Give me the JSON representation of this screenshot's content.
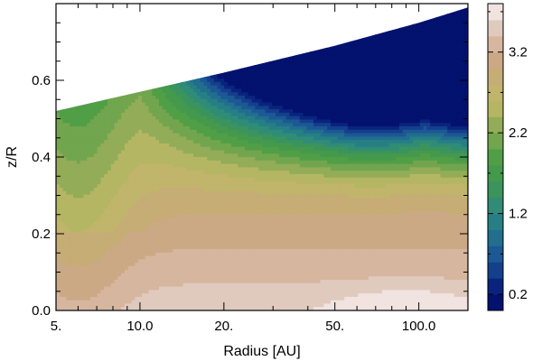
{
  "chart_data": {
    "type": "contour",
    "xlabel": "Radius [AU]",
    "ylabel": "z/R",
    "x_scale": "log",
    "xlim": [
      5,
      150
    ],
    "ylim": [
      0,
      0.8
    ],
    "x_ticks": [
      {
        "value": 5,
        "label": "5."
      },
      {
        "value": 10,
        "label": "10.0"
      },
      {
        "value": 20,
        "label": "20."
      },
      {
        "value": 50,
        "label": "50."
      },
      {
        "value": 100,
        "label": "100.0"
      }
    ],
    "y_ticks": [
      {
        "value": 0.0,
        "label": "0.0"
      },
      {
        "value": 0.2,
        "label": "0.2"
      },
      {
        "value": 0.4,
        "label": "0.4"
      },
      {
        "value": 0.6,
        "label": "0.6"
      }
    ],
    "colorbar": {
      "range": [
        0,
        3.8
      ],
      "ticks": [
        {
          "value": 0.2,
          "label": "0.2"
        },
        {
          "value": 1.2,
          "label": "1.2"
        },
        {
          "value": 2.2,
          "label": "2.2"
        },
        {
          "value": 3.2,
          "label": "3.2"
        }
      ],
      "levels": 19
    },
    "upper_boundary": [
      {
        "x": 5,
        "y": 0.52
      },
      {
        "x": 10,
        "y": 0.57
      },
      {
        "x": 20,
        "y": 0.62
      },
      {
        "x": 50,
        "y": 0.69
      },
      {
        "x": 100,
        "y": 0.75
      },
      {
        "x": 150,
        "y": 0.79
      }
    ],
    "grid": false,
    "colormap": "gist_earth",
    "colors": {
      "deep": "#000a6a",
      "blue": "#1a4aa0",
      "teal": "#2f8a80",
      "green": "#4a9a45",
      "olive": "#b6b465",
      "tan": "#c9a77c",
      "pink": "#d8b9a9",
      "white": "#f4eeee"
    }
  }
}
